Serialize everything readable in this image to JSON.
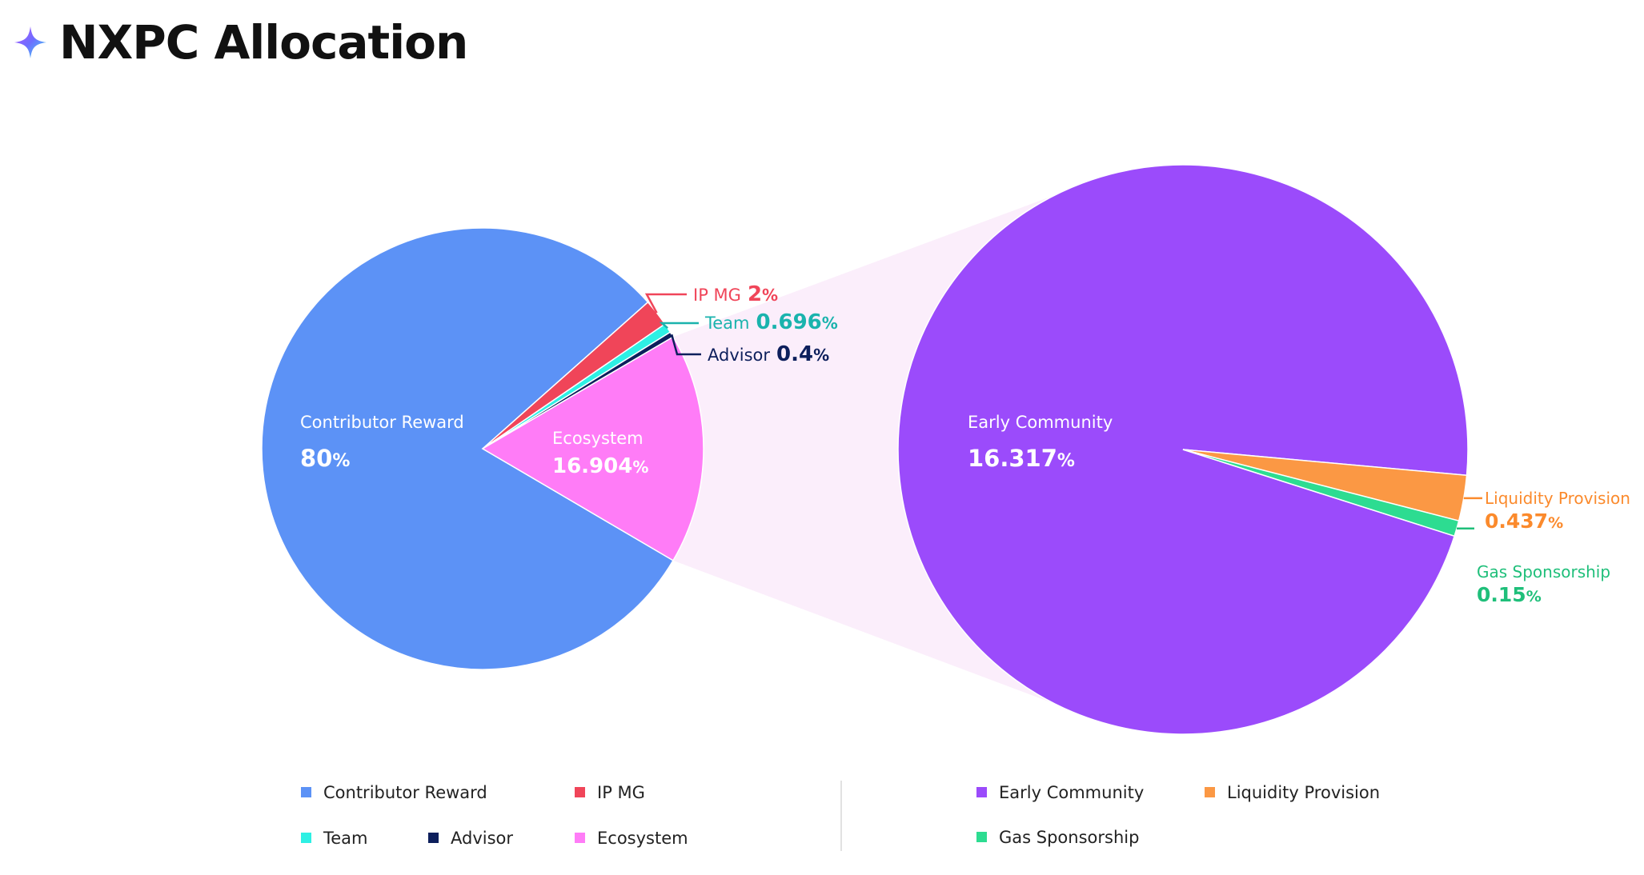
{
  "title": "NXPC Allocation",
  "icons": {
    "title_icon": "sparkle-icon"
  },
  "chart_data": [
    {
      "type": "pie",
      "slices": [
        {
          "label": "Contributor Reward",
          "value": 80,
          "value_text": "80",
          "color": "#5c92f6"
        },
        {
          "label": "IP MG",
          "value": 2,
          "value_text": "2",
          "color": "#f04559"
        },
        {
          "label": "Team",
          "value": 0.696,
          "value_text": "0.696",
          "color": "#2ef0e4"
        },
        {
          "label": "Advisor",
          "value": 0.4,
          "value_text": "0.4",
          "color": "#0d1f5c"
        },
        {
          "label": "Ecosystem",
          "value": 16.904,
          "value_text": "16.904",
          "color": "#ff7cf7"
        }
      ],
      "label_colors": {
        "IP MG": "#f04559",
        "Team": "#1ab3ad",
        "Advisor": "#0d1f5c"
      }
    },
    {
      "type": "pie",
      "breakdown_of": "Ecosystem",
      "slices": [
        {
          "label": "Early Community",
          "value": 16.317,
          "value_text": "16.317",
          "color": "#9b4bfb"
        },
        {
          "label": "Liquidity Provision",
          "value": 0.437,
          "value_text": "0.437",
          "color": "#fb9844"
        },
        {
          "label": "Gas Sponsorship",
          "value": 0.15,
          "value_text": "0.15",
          "color": "#2ddc91"
        }
      ],
      "label_colors": {
        "Liquidity Provision": "#fb8a2c",
        "Gas Sponsorship": "#1fbf7a"
      }
    }
  ],
  "legend": {
    "left": [
      "Contributor Reward",
      "IP MG",
      "Team",
      "Advisor",
      "Ecosystem"
    ],
    "right": [
      "Early Community",
      "Liquidity Provision",
      "Gas Sponsorship"
    ]
  },
  "connector_color": "#fbeefb"
}
